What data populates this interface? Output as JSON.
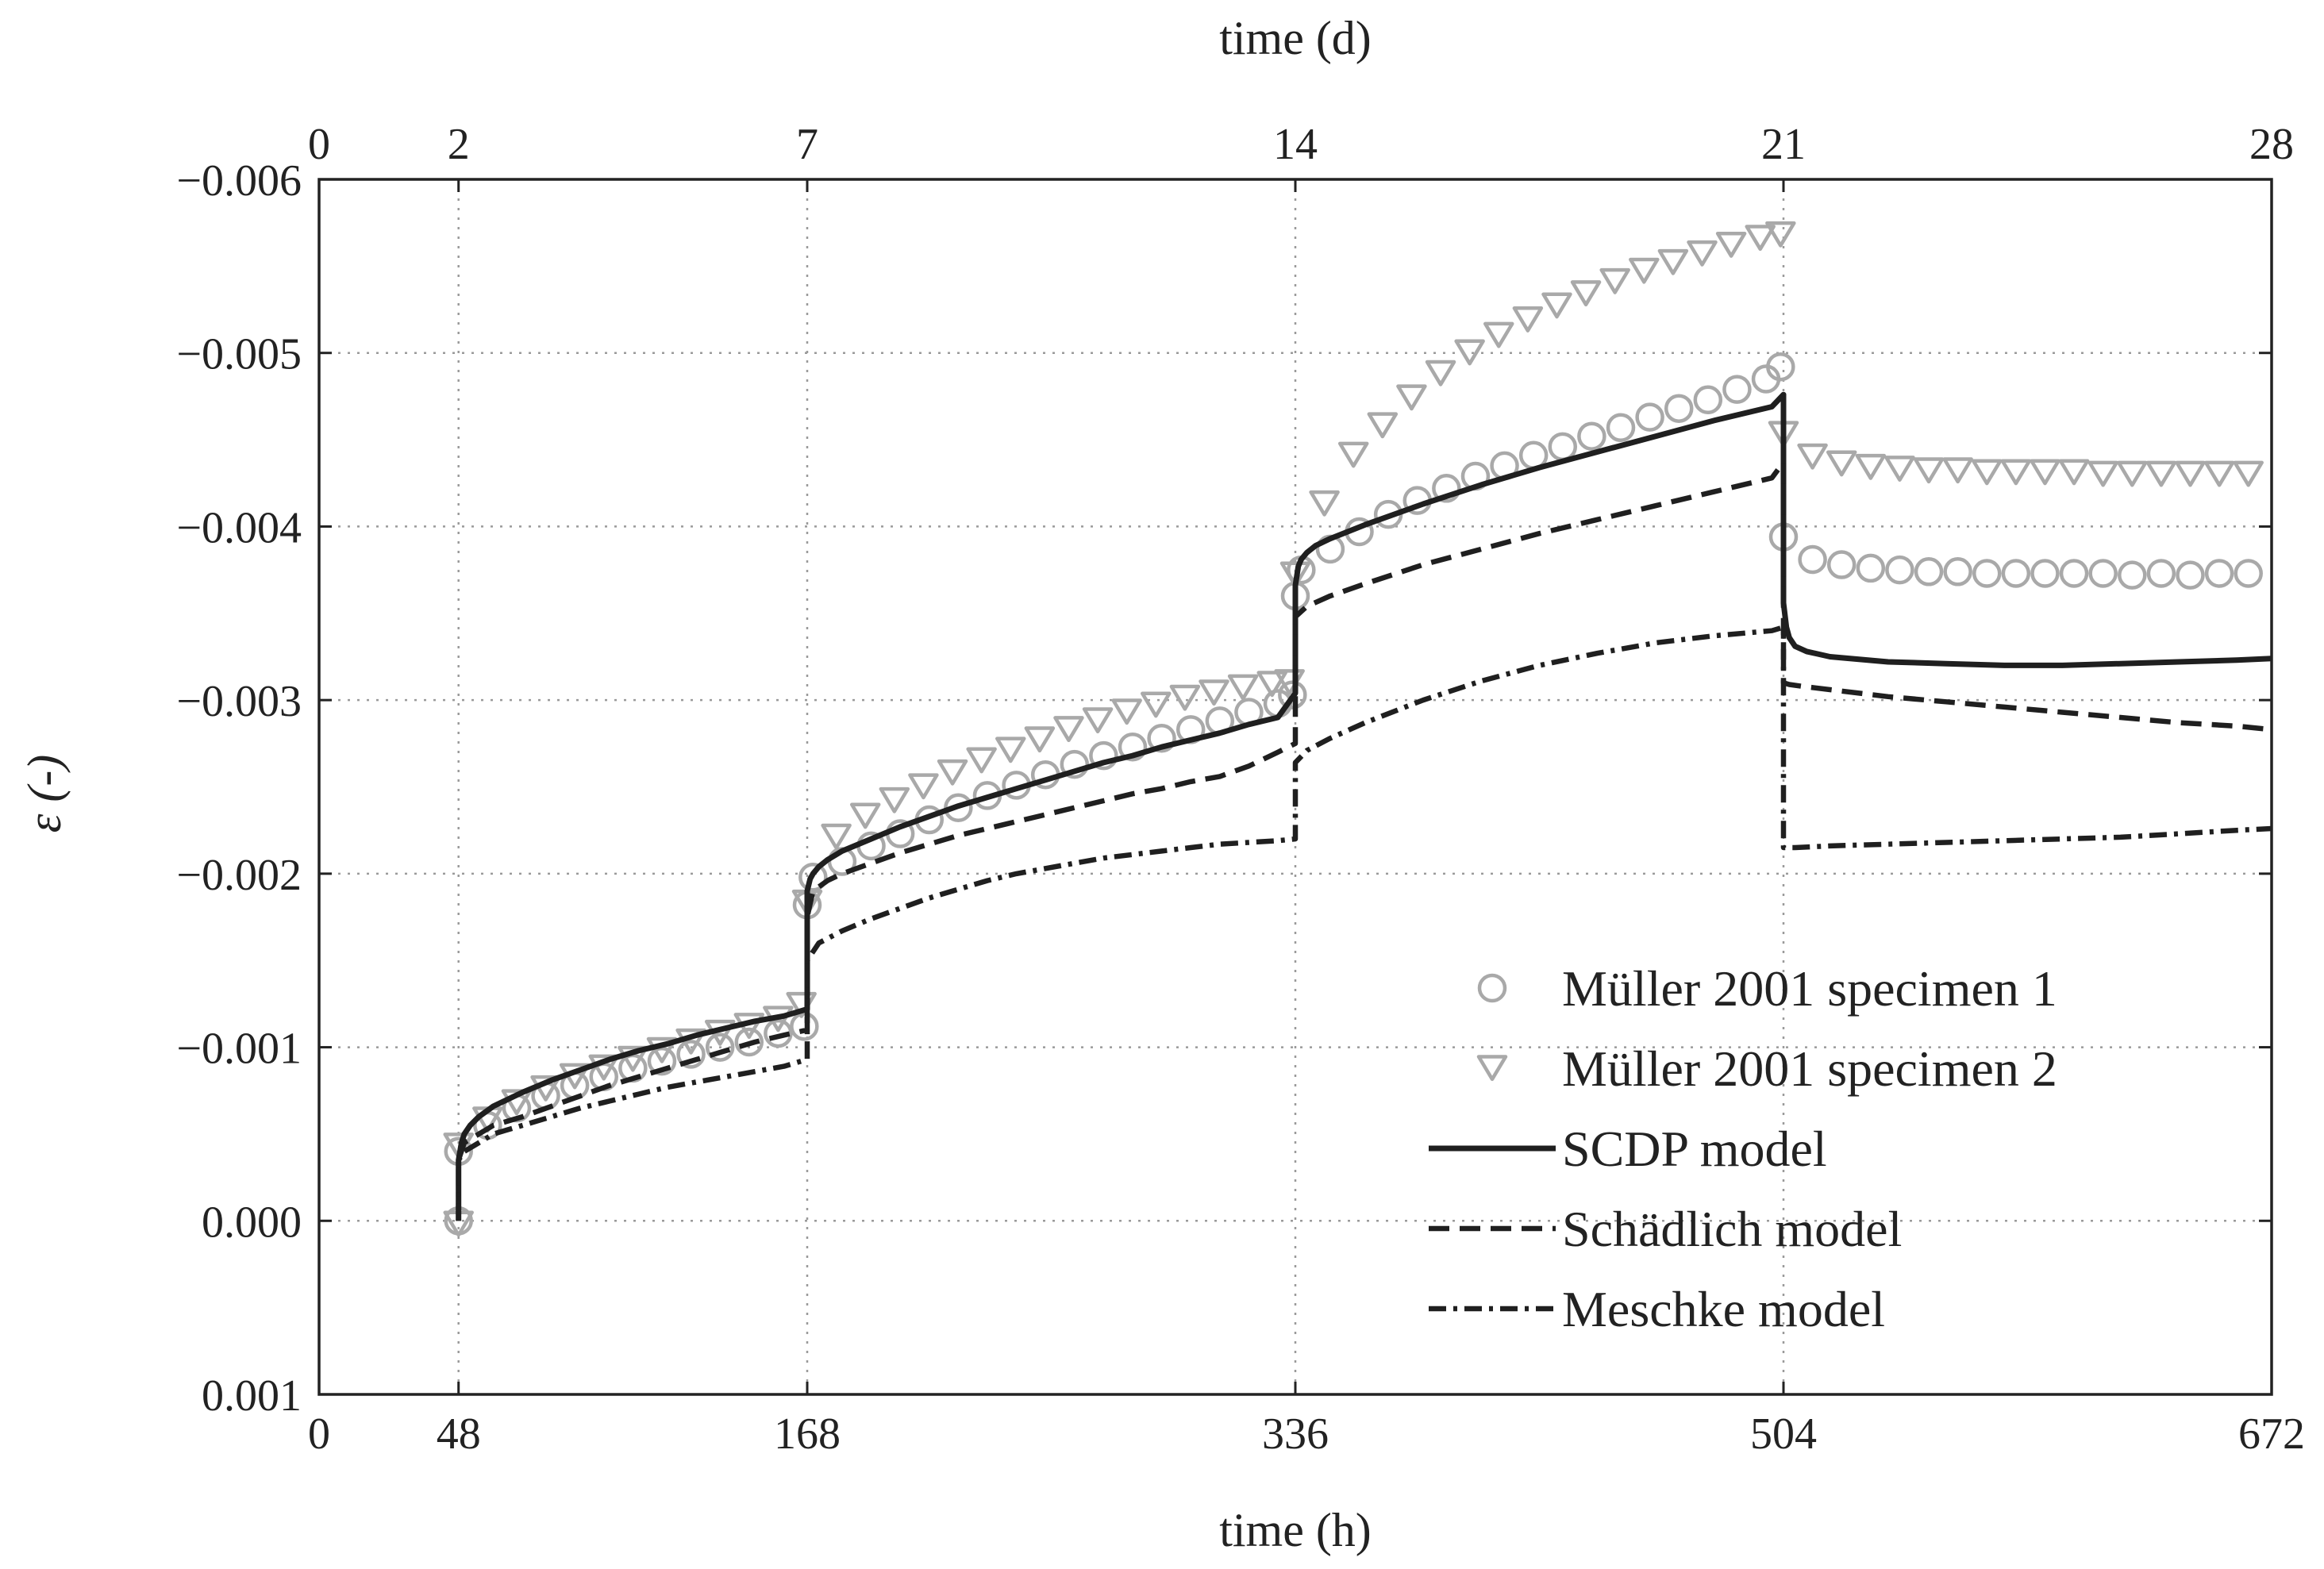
{
  "chart_data": {
    "type": "line",
    "xlabel": "time (h)",
    "x2label": "time (d)",
    "ylabel": "ε (-)",
    "xlim": [
      0,
      672
    ],
    "ylim": [
      0.001,
      -0.006
    ],
    "x_ticks": [
      0,
      48,
      168,
      336,
      504,
      672
    ],
    "x_tick_labels": [
      "0",
      "48",
      "168",
      "336",
      "504",
      "672"
    ],
    "x2_ticks": [
      0,
      48,
      168,
      336,
      504,
      672
    ],
    "x2_tick_labels": [
      "0",
      "2",
      "7",
      "14",
      "21",
      "28"
    ],
    "y_ticks": [
      -0.006,
      -0.005,
      -0.004,
      -0.003,
      -0.002,
      -0.001,
      0.0,
      0.001
    ],
    "y_tick_labels": [
      "−0.006",
      "−0.005",
      "−0.004",
      "−0.003",
      "−0.002",
      "−0.001",
      "0.000",
      "0.001"
    ],
    "grid": true,
    "legend_position": "bottom-right",
    "colors": {
      "specimen": "#a9a9a9",
      "model": "#1f1f1f"
    },
    "series": [
      {
        "name": "Müller 2001 specimen 1",
        "style": "circle-markers",
        "x": [
          48,
          48,
          58,
          68,
          78,
          88,
          98,
          108,
          118,
          128,
          138,
          148,
          158,
          167,
          168,
          170,
          180,
          190,
          200,
          210,
          220,
          230,
          240,
          250,
          260,
          270,
          280,
          290,
          300,
          310,
          320,
          330,
          335,
          336,
          338,
          348,
          358,
          368,
          378,
          388,
          398,
          408,
          418,
          428,
          438,
          448,
          458,
          468,
          478,
          488,
          498,
          503,
          504,
          514,
          524,
          534,
          544,
          554,
          564,
          574,
          584,
          594,
          604,
          614,
          624,
          634,
          644,
          654,
          664
        ],
        "y": [
          0.0,
          -0.0004,
          -0.00055,
          -0.00065,
          -0.00072,
          -0.00078,
          -0.00083,
          -0.00088,
          -0.00092,
          -0.00096,
          -0.001,
          -0.00103,
          -0.00108,
          -0.00112,
          -0.00182,
          -0.00198,
          -0.00207,
          -0.00216,
          -0.00223,
          -0.00231,
          -0.00238,
          -0.00245,
          -0.00251,
          -0.00257,
          -0.00263,
          -0.00268,
          -0.00273,
          -0.00278,
          -0.00283,
          -0.00288,
          -0.00293,
          -0.00298,
          -0.00303,
          -0.0036,
          -0.00375,
          -0.00387,
          -0.00397,
          -0.00407,
          -0.00415,
          -0.00422,
          -0.00429,
          -0.00435,
          -0.00441,
          -0.00446,
          -0.00452,
          -0.00457,
          -0.00463,
          -0.00468,
          -0.00473,
          -0.00479,
          -0.00485,
          -0.00492,
          -0.00394,
          -0.00381,
          -0.00378,
          -0.00376,
          -0.00375,
          -0.00374,
          -0.00374,
          -0.00373,
          -0.00373,
          -0.00373,
          -0.00373,
          -0.00373,
          -0.00372,
          -0.00373,
          -0.00372,
          -0.00373,
          -0.00373
        ]
      },
      {
        "name": "Müller 2001 specimen 2",
        "style": "triangle-down-markers",
        "x": [
          48,
          48,
          58,
          68,
          78,
          88,
          98,
          108,
          118,
          128,
          138,
          148,
          158,
          166,
          168,
          178,
          188,
          198,
          208,
          218,
          228,
          238,
          248,
          258,
          268,
          278,
          288,
          298,
          308,
          318,
          328,
          334,
          336,
          346,
          356,
          366,
          376,
          386,
          396,
          406,
          416,
          426,
          436,
          446,
          456,
          466,
          476,
          486,
          496,
          503,
          504,
          514,
          524,
          534,
          544,
          554,
          564,
          574,
          584,
          594,
          604,
          614,
          624,
          634,
          644,
          654,
          664
        ],
        "y": [
          0.0,
          -0.00045,
          -0.0006,
          -0.0007,
          -0.00078,
          -0.00085,
          -0.0009,
          -0.00095,
          -0.001,
          -0.00105,
          -0.0011,
          -0.00114,
          -0.00118,
          -0.00126,
          -0.00185,
          -0.00223,
          -0.00235,
          -0.00244,
          -0.00252,
          -0.0026,
          -0.00267,
          -0.00273,
          -0.00279,
          -0.00285,
          -0.0029,
          -0.00295,
          -0.00299,
          -0.00303,
          -0.00306,
          -0.00309,
          -0.00311,
          -0.00312,
          -0.00374,
          -0.00415,
          -0.00443,
          -0.0046,
          -0.00476,
          -0.0049,
          -0.00502,
          -0.00512,
          -0.00521,
          -0.00529,
          -0.00536,
          -0.00543,
          -0.00549,
          -0.00554,
          -0.00559,
          -0.00564,
          -0.00568,
          -0.0057,
          -0.00455,
          -0.00442,
          -0.00438,
          -0.00436,
          -0.00435,
          -0.00434,
          -0.00434,
          -0.00433,
          -0.00433,
          -0.00433,
          -0.00433,
          -0.00432,
          -0.00432,
          -0.00432,
          -0.00432,
          -0.00432,
          -0.00432
        ]
      },
      {
        "name": "SCDP model",
        "style": "solid",
        "x": [
          48,
          48,
          49,
          50,
          52,
          55,
          60,
          70,
          80,
          90,
          100,
          110,
          120,
          130,
          140,
          150,
          160,
          168,
          168,
          169,
          170,
          172,
          175,
          180,
          190,
          200,
          210,
          220,
          230,
          240,
          250,
          260,
          270,
          280,
          290,
          300,
          310,
          320,
          330,
          336,
          336,
          337,
          338,
          340,
          343,
          348,
          360,
          380,
          400,
          420,
          440,
          460,
          480,
          500,
          504,
          504,
          505,
          506,
          508,
          512,
          520,
          540,
          560,
          580,
          600,
          620,
          640,
          660,
          672
        ],
        "y": [
          0.0,
          -0.00035,
          -0.00045,
          -0.0005,
          -0.00055,
          -0.0006,
          -0.00066,
          -0.00074,
          -0.00081,
          -0.00087,
          -0.00093,
          -0.00098,
          -0.00102,
          -0.00107,
          -0.00111,
          -0.00115,
          -0.00118,
          -0.00122,
          -0.0019,
          -0.00197,
          -0.002,
          -0.00204,
          -0.00208,
          -0.00213,
          -0.0022,
          -0.00227,
          -0.00233,
          -0.00239,
          -0.00244,
          -0.00249,
          -0.00254,
          -0.00259,
          -0.00264,
          -0.00268,
          -0.00273,
          -0.00277,
          -0.00281,
          -0.00286,
          -0.0029,
          -0.00304,
          -0.00366,
          -0.00377,
          -0.00381,
          -0.00385,
          -0.00389,
          -0.00393,
          -0.00401,
          -0.00413,
          -0.00424,
          -0.00434,
          -0.00443,
          -0.00452,
          -0.00461,
          -0.00469,
          -0.00476,
          -0.00356,
          -0.00342,
          -0.00336,
          -0.00331,
          -0.00328,
          -0.00325,
          -0.00322,
          -0.00321,
          -0.0032,
          -0.0032,
          -0.00321,
          -0.00322,
          -0.00323,
          -0.00324
        ]
      },
      {
        "name": "Schädlich model",
        "style": "dashed",
        "x": [
          48,
          48,
          50,
          55,
          60,
          70,
          80,
          90,
          100,
          110,
          120,
          130,
          140,
          150,
          160,
          168,
          168,
          170,
          175,
          180,
          190,
          200,
          210,
          220,
          230,
          240,
          250,
          260,
          270,
          280,
          290,
          300,
          310,
          320,
          330,
          336,
          336,
          340,
          348,
          360,
          380,
          400,
          420,
          440,
          460,
          480,
          500,
          504,
          504,
          506,
          510,
          520,
          540,
          560,
          580,
          600,
          620,
          640,
          660,
          672
        ],
        "y": [
          0.0,
          -0.00035,
          -0.00045,
          -0.0005,
          -0.00055,
          -0.0006,
          -0.00066,
          -0.00072,
          -0.00078,
          -0.00083,
          -0.00088,
          -0.00093,
          -0.00098,
          -0.00103,
          -0.00107,
          -0.0011,
          -0.00175,
          -0.0019,
          -0.00196,
          -0.002,
          -0.00206,
          -0.00212,
          -0.00217,
          -0.00222,
          -0.00226,
          -0.0023,
          -0.00234,
          -0.00238,
          -0.00242,
          -0.00246,
          -0.00249,
          -0.00253,
          -0.00256,
          -0.00262,
          -0.0027,
          -0.00275,
          -0.00348,
          -0.00354,
          -0.0036,
          -0.00367,
          -0.00378,
          -0.00387,
          -0.00396,
          -0.00404,
          -0.00412,
          -0.0042,
          -0.00428,
          -0.00437,
          -0.0031,
          -0.00309,
          -0.00308,
          -0.00306,
          -0.00302,
          -0.00299,
          -0.00296,
          -0.00293,
          -0.0029,
          -0.00287,
          -0.00285,
          -0.00283
        ]
      },
      {
        "name": "Meschke model",
        "style": "dashdot",
        "x": [
          48,
          48,
          50,
          55,
          60,
          70,
          80,
          90,
          100,
          110,
          120,
          130,
          140,
          150,
          160,
          168,
          168,
          172,
          180,
          190,
          200,
          210,
          220,
          230,
          240,
          250,
          260,
          270,
          280,
          290,
          300,
          310,
          320,
          330,
          336,
          336,
          340,
          348,
          360,
          380,
          400,
          420,
          440,
          460,
          480,
          500,
          504,
          504,
          508,
          520,
          540,
          560,
          580,
          600,
          620,
          640,
          660,
          672
        ],
        "y": [
          0.0,
          -0.00035,
          -0.0004,
          -0.00045,
          -0.0005,
          -0.00055,
          -0.0006,
          -0.00065,
          -0.00069,
          -0.00073,
          -0.00077,
          -0.0008,
          -0.00083,
          -0.00086,
          -0.00089,
          -0.00093,
          -0.0015,
          -0.0016,
          -0.00167,
          -0.00174,
          -0.0018,
          -0.00186,
          -0.00191,
          -0.00196,
          -0.002,
          -0.00203,
          -0.00206,
          -0.00209,
          -0.00211,
          -0.00213,
          -0.00215,
          -0.00217,
          -0.00218,
          -0.00219,
          -0.0022,
          -0.00264,
          -0.00271,
          -0.00278,
          -0.00287,
          -0.003,
          -0.00311,
          -0.0032,
          -0.00327,
          -0.00333,
          -0.00337,
          -0.0034,
          -0.00342,
          -0.00215,
          -0.00215,
          -0.00216,
          -0.00217,
          -0.00218,
          -0.00219,
          -0.0022,
          -0.00221,
          -0.00223,
          -0.00225,
          -0.00226
        ]
      }
    ]
  }
}
